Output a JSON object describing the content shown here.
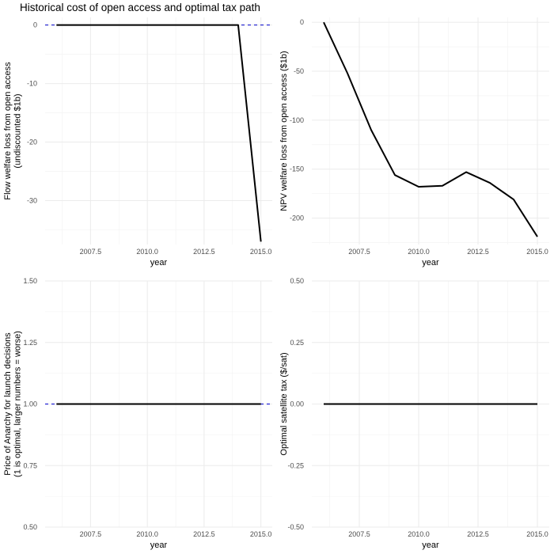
{
  "title": "Historical cost of open access and optimal tax path",
  "chart_data": [
    {
      "type": "line",
      "xlabel": "year",
      "ylabel": [
        "Flow welfare loss from open access",
        "(undiscounted $1b)"
      ],
      "xlim": [
        2005.5,
        2015.5
      ],
      "ylim": [
        -37.5,
        1.3
      ],
      "xticks": [
        2007.5,
        2010.0,
        2012.5,
        2015.0
      ],
      "xtick_labels": [
        "2007.5",
        "2010.0",
        "2012.5",
        "2015.0"
      ],
      "yticks": [
        0,
        -10,
        -20,
        -30
      ],
      "ytick_labels": [
        "0",
        "-10",
        "-20",
        "-30"
      ],
      "grid": true,
      "reference_line": {
        "y": 0,
        "style": "dashed",
        "color": "#0000cc"
      },
      "series": [
        {
          "color": "#000000",
          "x": [
            2006,
            2007,
            2008,
            2009,
            2010,
            2011,
            2012,
            2013,
            2014,
            2015
          ],
          "y": [
            0,
            0,
            0,
            0,
            0,
            0,
            0,
            0,
            0,
            -37
          ]
        }
      ]
    },
    {
      "type": "line",
      "xlabel": "year",
      "ylabel": [
        "NPV welfare loss from open access ($1b)"
      ],
      "xlim": [
        2005.5,
        2015.5
      ],
      "ylim": [
        -227,
        5
      ],
      "xticks": [
        2007.5,
        2010.0,
        2012.5,
        2015.0
      ],
      "xtick_labels": [
        "2007.5",
        "2010.0",
        "2012.5",
        "2015.0"
      ],
      "yticks": [
        0,
        -50,
        -100,
        -150,
        -200
      ],
      "ytick_labels": [
        "0",
        "-50",
        "-100",
        "-150",
        "-200"
      ],
      "grid": true,
      "series": [
        {
          "color": "#000000",
          "x": [
            2006,
            2007,
            2008,
            2009,
            2010,
            2011,
            2012,
            2013,
            2014,
            2015
          ],
          "y": [
            0,
            -52,
            -110,
            -156,
            -168,
            -167,
            -153,
            -164,
            -181,
            -219
          ]
        }
      ]
    },
    {
      "type": "line",
      "xlabel": "year",
      "ylabel": [
        "Price of Anarchy for launch decisions",
        "(1 is optimal, larger numbers = worse)"
      ],
      "xlim": [
        2005.5,
        2015.5
      ],
      "ylim": [
        0.5,
        1.5
      ],
      "xticks": [
        2007.5,
        2010.0,
        2012.5,
        2015.0
      ],
      "xtick_labels": [
        "2007.5",
        "2010.0",
        "2012.5",
        "2015.0"
      ],
      "yticks": [
        0.5,
        0.75,
        1.0,
        1.25,
        1.5
      ],
      "ytick_labels": [
        "0.50",
        "0.75",
        "1.00",
        "1.25",
        "1.50"
      ],
      "grid": true,
      "reference_line": {
        "y": 1,
        "style": "dashed",
        "color": "#0000cc"
      },
      "series": [
        {
          "color": "#000000",
          "x": [
            2006,
            2007,
            2008,
            2009,
            2010,
            2011,
            2012,
            2013,
            2014,
            2015
          ],
          "y": [
            1,
            1,
            1,
            1,
            1,
            1,
            1,
            1,
            1,
            1
          ]
        }
      ]
    },
    {
      "type": "line",
      "xlabel": "year",
      "ylabel": [
        "Optimal satellite tax ($/sat)"
      ],
      "xlim": [
        2005.5,
        2015.5
      ],
      "ylim": [
        -0.5,
        0.5
      ],
      "xticks": [
        2007.5,
        2010.0,
        2012.5,
        2015.0
      ],
      "xtick_labels": [
        "2007.5",
        "2010.0",
        "2012.5",
        "2015.0"
      ],
      "yticks": [
        -0.5,
        -0.25,
        0,
        0.25,
        0.5
      ],
      "ytick_labels": [
        "-0.50",
        "-0.25",
        "0.00",
        "0.25",
        "0.50"
      ],
      "grid": true,
      "series": [
        {
          "color": "#000000",
          "x": [
            2006,
            2007,
            2008,
            2009,
            2010,
            2011,
            2012,
            2013,
            2014,
            2015
          ],
          "y": [
            0,
            0,
            0,
            0,
            0,
            0,
            0,
            0,
            0,
            0
          ]
        }
      ]
    }
  ]
}
